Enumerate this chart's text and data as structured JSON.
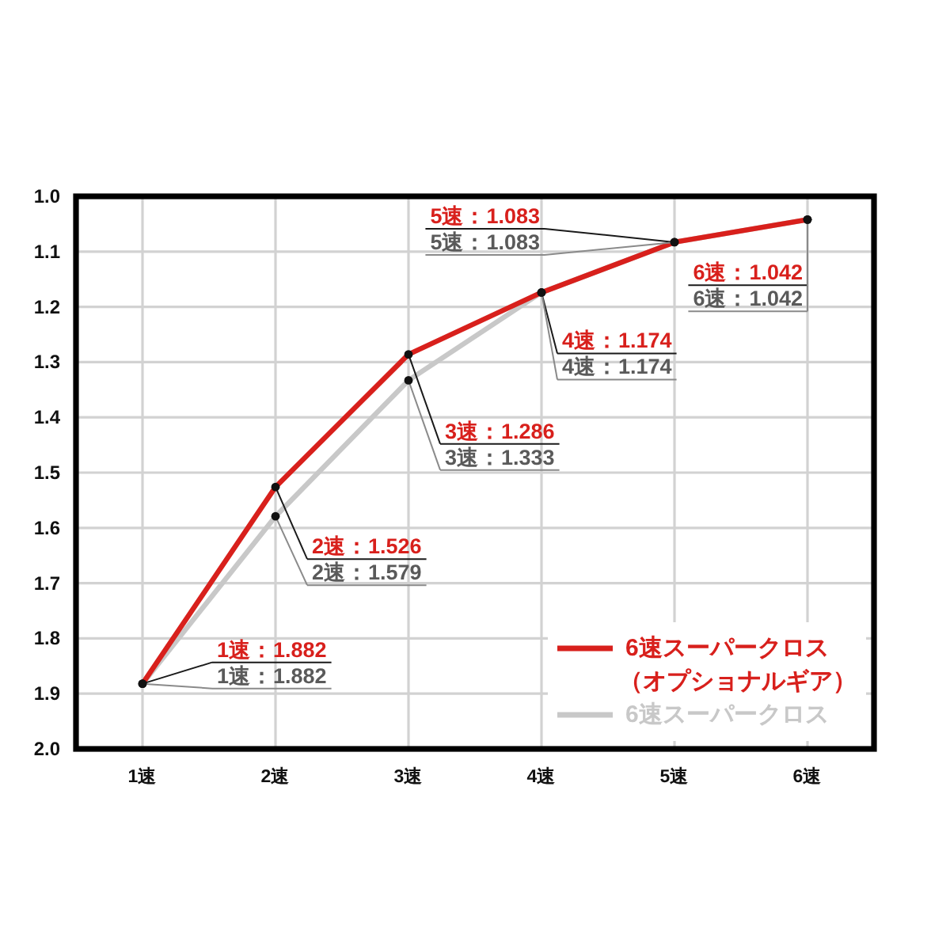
{
  "chart_data": {
    "type": "line",
    "categories": [
      "1速",
      "2速",
      "3速",
      "4速",
      "5速",
      "6速"
    ],
    "series": [
      {
        "name": "6速スーパークロス（オプショナルギア）",
        "color": "#d8201c",
        "values": [
          1.882,
          1.526,
          1.286,
          1.174,
          1.083,
          1.042
        ],
        "value_labels": [
          "1速：1.882",
          "2速：1.526",
          "3速：1.286",
          "4速：1.174",
          "5速：1.083",
          "6速：1.042"
        ]
      },
      {
        "name": "6速スーパークロス",
        "color": "#c8c8c8",
        "values": [
          1.882,
          1.579,
          1.333,
          1.174,
          1.083,
          1.042
        ],
        "value_labels": [
          "1速：1.882",
          "2速：1.579",
          "3速：1.333",
          "4速：1.174",
          "5速：1.083",
          "6速：1.042"
        ]
      }
    ],
    "ylim": [
      2.0,
      1.0
    ],
    "yticks": [
      {
        "value": 1,
        "label": "1.0"
      },
      1.1,
      1.2,
      1.3,
      1.4,
      1.5,
      1.6,
      1.7,
      1.8,
      1.9,
      {
        "value": 2,
        "label": "2.0"
      }
    ],
    "grid": true,
    "legend": "bottom right",
    "marker": "circle",
    "line_style": "solid"
  }
}
